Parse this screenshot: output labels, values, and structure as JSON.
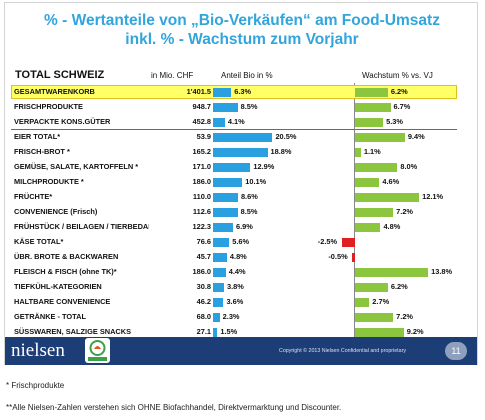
{
  "title_line1": "% - Wertanteile von „Bio-Verkäufen“ am Food-Umsatz",
  "title_line2": "inkl. % - Wachstum zum Vorjahr",
  "headers": {
    "total": "TOTAL SCHWEIZ",
    "value": "in Mio. CHF",
    "share": "Anteil Bio in %",
    "growth": "Wachstum % vs. VJ"
  },
  "colors": {
    "title": "#31a5dc",
    "share_bar": "#2aa0e0",
    "growth_pos": "#8cc63f",
    "growth_neg": "#e02020",
    "highlight": "#ffff66",
    "footer": "#1c3d75"
  },
  "chart_data": {
    "type": "bar",
    "title": "% - Wertanteile von „Bio-Verkäufen“ am Food-Umsatz inkl. % - Wachstum zum Vorjahr",
    "columns": [
      "in Mio. CHF",
      "Anteil Bio in %",
      "Wachstum % vs. VJ"
    ],
    "rows": [
      {
        "label": "GESAMTWARENKORB",
        "value": "1'401.5",
        "share": 6.3,
        "share_label": "6.3%",
        "growth": 6.2,
        "growth_label": "6.2%"
      },
      {
        "label": "FRISCHPRODUKTE",
        "value": "948.7",
        "share": 8.5,
        "share_label": "8.5%",
        "growth": 6.7,
        "growth_label": "6.7%"
      },
      {
        "label": "VERPACKTE KONS.GÜTER",
        "value": "452.8",
        "share": 4.1,
        "share_label": "4.1%",
        "growth": 5.3,
        "growth_label": "5.3%"
      },
      {
        "label": "EIER TOTAL*",
        "value": "53.9",
        "share": 20.5,
        "share_label": "20.5%",
        "growth": 9.4,
        "growth_label": "9.4%"
      },
      {
        "label": "FRISCH-BROT *",
        "value": "165.2",
        "share": 18.8,
        "share_label": "18.8%",
        "growth": 1.1,
        "growth_label": "1.1%"
      },
      {
        "label": "GEMÜSE, SALATE, KARTOFFELN *",
        "value": "171.0",
        "share": 12.9,
        "share_label": "12.9%",
        "growth": 8.0,
        "growth_label": "8.0%"
      },
      {
        "label": "MILCHPRODUKTE *",
        "value": "186.0",
        "share": 10.1,
        "share_label": "10.1%",
        "growth": 4.6,
        "growth_label": "4.6%"
      },
      {
        "label": "FRÜCHTE*",
        "value": "110.0",
        "share": 8.6,
        "share_label": "8.6%",
        "growth": 12.1,
        "growth_label": "12.1%"
      },
      {
        "label": "CONVENIENCE (Frisch)",
        "value": "112.6",
        "share": 8.5,
        "share_label": "8.5%",
        "growth": 7.2,
        "growth_label": "7.2%"
      },
      {
        "label": "FRÜHSTÜCK / BEILAGEN / TIERBEDAR",
        "value": "122.3",
        "share": 6.9,
        "share_label": "6.9%",
        "growth": 4.8,
        "growth_label": "4.8%"
      },
      {
        "label": "KÄSE TOTAL*",
        "value": "76.6",
        "share": 5.6,
        "share_label": "5.6%",
        "growth": -2.5,
        "growth_label": "-2.5%"
      },
      {
        "label": "ÜBR. BROTE & BACKWAREN",
        "value": "45.7",
        "share": 4.8,
        "share_label": "4.8%",
        "growth": -0.5,
        "growth_label": "-0.5%"
      },
      {
        "label": "FLEISCH & FISCH (ohne TK)*",
        "value": "186.0",
        "share": 4.4,
        "share_label": "4.4%",
        "growth": 13.8,
        "growth_label": "13.8%"
      },
      {
        "label": "TIEFKÜHL-KATEGORIEN",
        "value": "30.8",
        "share": 3.8,
        "share_label": "3.8%",
        "growth": 6.2,
        "growth_label": "6.2%"
      },
      {
        "label": "HALTBARE CONVENIENCE",
        "value": "46.2",
        "share": 3.6,
        "share_label": "3.6%",
        "growth": 2.7,
        "growth_label": "2.7%"
      },
      {
        "label": "GETRÄNKE - TOTAL",
        "value": "68.0",
        "share": 2.3,
        "share_label": "2.3%",
        "growth": 7.2,
        "growth_label": "7.2%"
      },
      {
        "label": "SÜSSWAREN, SALZIGE SNACKS",
        "value": "27.1",
        "share": 1.5,
        "share_label": "1.5%",
        "growth": 9.2,
        "growth_label": "9.2%"
      }
    ]
  },
  "footer": {
    "brand": "nielsen",
    "copyright": "Copyright © 2013 Nielsen Confidential and proprietary",
    "page": "11",
    "bio_logo_text": "BIO SUISSE"
  },
  "notes": {
    "note1": "* Frischprodukte",
    "note2": "**Alle Nielsen-Zahlen verstehen sich OHNE Biofachhandel, Direktvermarktung und Discounter."
  }
}
